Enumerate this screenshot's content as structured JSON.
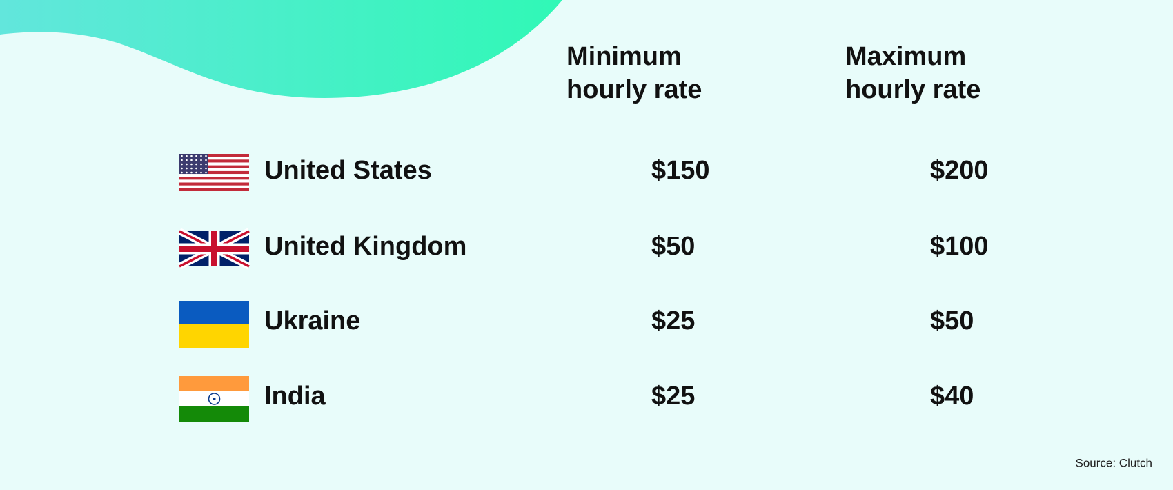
{
  "table": {
    "header": [
      "Minimum hourly rate",
      "Maximum hourly rate"
    ],
    "header_lines": [
      [
        "Minimum",
        "hourly rate"
      ],
      [
        "Maximum",
        "hourly rate"
      ]
    ],
    "rows": [
      [
        "United States",
        "$150",
        "$200"
      ],
      [
        "United Kingdom",
        "$50",
        "$100"
      ],
      [
        "Ukraine",
        "$25",
        "$50"
      ],
      [
        "India",
        "$25",
        "$40"
      ]
    ]
  },
  "source": "Source: Clutch"
}
